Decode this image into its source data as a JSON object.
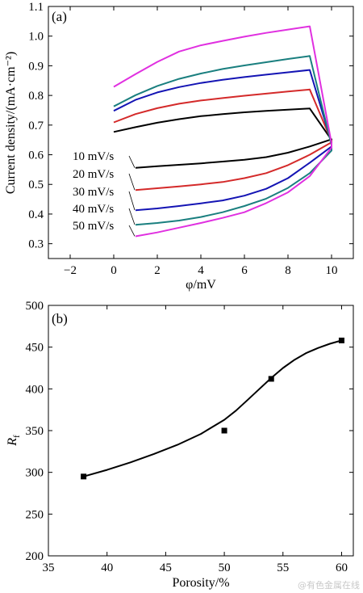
{
  "chart_data": [
    {
      "type": "line",
      "panel_label": "(a)",
      "xlabel": "φ/mV",
      "ylabel": "Current density/(mA·cm⁻²)",
      "xlim": [
        -3,
        11
      ],
      "ylim": [
        0.25,
        1.1
      ],
      "xticks": [
        -2,
        0,
        2,
        4,
        6,
        8,
        10
      ],
      "yticks": [
        0.3,
        0.4,
        0.5,
        0.6,
        0.7,
        0.8,
        0.9,
        1.0,
        1.1
      ],
      "series": [
        {
          "name": "10 mV/s",
          "color": "#000000",
          "forward": [
            [
              0,
              0.677
            ],
            [
              1,
              0.693
            ],
            [
              2,
              0.708
            ],
            [
              3,
              0.72
            ],
            [
              4,
              0.73
            ],
            [
              5,
              0.737
            ],
            [
              6,
              0.743
            ],
            [
              7,
              0.748
            ],
            [
              8,
              0.752
            ],
            [
              9,
              0.756
            ],
            [
              10,
              0.65
            ]
          ],
          "reverse": [
            [
              10,
              0.652
            ],
            [
              9,
              0.628
            ],
            [
              8,
              0.607
            ],
            [
              7,
              0.592
            ],
            [
              6,
              0.583
            ],
            [
              5,
              0.577
            ],
            [
              4,
              0.571
            ],
            [
              3,
              0.566
            ],
            [
              2,
              0.561
            ],
            [
              1,
              0.556
            ]
          ]
        },
        {
          "name": "20 mV/s",
          "color": "#d42a2a",
          "forward": [
            [
              0,
              0.709
            ],
            [
              1,
              0.737
            ],
            [
              2,
              0.757
            ],
            [
              3,
              0.772
            ],
            [
              4,
              0.783
            ],
            [
              5,
              0.791
            ],
            [
              6,
              0.799
            ],
            [
              7,
              0.806
            ],
            [
              8,
              0.813
            ],
            [
              9,
              0.82
            ],
            [
              10,
              0.646
            ]
          ],
          "reverse": [
            [
              10,
              0.642
            ],
            [
              9,
              0.6
            ],
            [
              8,
              0.565
            ],
            [
              7,
              0.538
            ],
            [
              6,
              0.521
            ],
            [
              5,
              0.508
            ],
            [
              4,
              0.5
            ],
            [
              3,
              0.493
            ],
            [
              2,
              0.487
            ],
            [
              1,
              0.481
            ]
          ]
        },
        {
          "name": "30 mV/s",
          "color": "#1414b4",
          "forward": [
            [
              0,
              0.748
            ],
            [
              1,
              0.785
            ],
            [
              2,
              0.81
            ],
            [
              3,
              0.828
            ],
            [
              4,
              0.842
            ],
            [
              5,
              0.853
            ],
            [
              6,
              0.862
            ],
            [
              7,
              0.87
            ],
            [
              8,
              0.878
            ],
            [
              9,
              0.886
            ],
            [
              10,
              0.64
            ]
          ],
          "reverse": [
            [
              10,
              0.628
            ],
            [
              9,
              0.573
            ],
            [
              8,
              0.521
            ],
            [
              7,
              0.485
            ],
            [
              6,
              0.462
            ],
            [
              5,
              0.446
            ],
            [
              4,
              0.436
            ],
            [
              3,
              0.427
            ],
            [
              2,
              0.419
            ],
            [
              1,
              0.413
            ]
          ]
        },
        {
          "name": "40 mV/s",
          "color": "#1a7f7f",
          "forward": [
            [
              0,
              0.763
            ],
            [
              1,
              0.801
            ],
            [
              2,
              0.832
            ],
            [
              3,
              0.856
            ],
            [
              4,
              0.874
            ],
            [
              5,
              0.889
            ],
            [
              6,
              0.901
            ],
            [
              7,
              0.912
            ],
            [
              8,
              0.923
            ],
            [
              9,
              0.933
            ],
            [
              10,
              0.632
            ]
          ],
          "reverse": [
            [
              10,
              0.614
            ],
            [
              9,
              0.538
            ],
            [
              8,
              0.488
            ],
            [
              7,
              0.452
            ],
            [
              6,
              0.427
            ],
            [
              5,
              0.406
            ],
            [
              4,
              0.39
            ],
            [
              3,
              0.378
            ],
            [
              2,
              0.37
            ],
            [
              1,
              0.364
            ]
          ]
        },
        {
          "name": "50 mV/s",
          "color": "#e030e0",
          "forward": [
            [
              0,
              0.829
            ],
            [
              1,
              0.872
            ],
            [
              2,
              0.913
            ],
            [
              3,
              0.948
            ],
            [
              4,
              0.969
            ],
            [
              5,
              0.984
            ],
            [
              6,
              0.998
            ],
            [
              7,
              1.011
            ],
            [
              8,
              1.022
            ],
            [
              9,
              1.033
            ],
            [
              10,
              0.638
            ]
          ],
          "reverse": [
            [
              10,
              0.624
            ],
            [
              9,
              0.528
            ],
            [
              8,
              0.473
            ],
            [
              7,
              0.437
            ],
            [
              6,
              0.406
            ],
            [
              5,
              0.387
            ],
            [
              4,
              0.37
            ],
            [
              3,
              0.354
            ],
            [
              2,
              0.338
            ],
            [
              1,
              0.325
            ]
          ]
        }
      ]
    },
    {
      "type": "scatter",
      "panel_label": "(b)",
      "xlabel": "Porosity/%",
      "ylabel_main": "R",
      "ylabel_sub": "f",
      "xlim": [
        35,
        61
      ],
      "ylim": [
        200,
        500
      ],
      "xticks": [
        35,
        40,
        45,
        50,
        55,
        60
      ],
      "yticks": [
        200,
        250,
        300,
        350,
        400,
        450,
        500
      ],
      "points": [
        [
          38,
          295
        ],
        [
          50,
          350
        ],
        [
          54,
          412
        ],
        [
          60,
          458
        ]
      ],
      "fit_curve": [
        [
          38,
          295
        ],
        [
          40,
          303
        ],
        [
          42,
          312
        ],
        [
          44,
          322
        ],
        [
          46,
          333
        ],
        [
          48,
          346
        ],
        [
          50,
          363
        ],
        [
          51,
          374
        ],
        [
          52,
          387
        ],
        [
          53,
          400
        ],
        [
          54,
          413
        ],
        [
          55,
          425
        ],
        [
          56,
          435
        ],
        [
          57,
          443
        ],
        [
          58,
          449
        ],
        [
          59,
          454
        ],
        [
          60,
          458
        ]
      ]
    }
  ],
  "watermark": "@有色金属在线"
}
